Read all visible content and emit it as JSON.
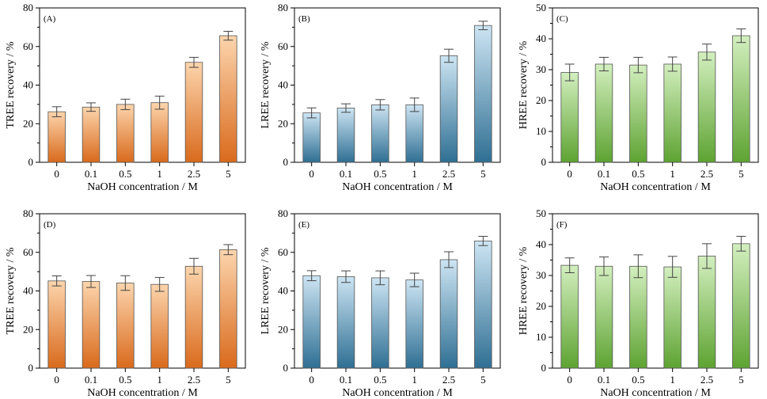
{
  "figure": {
    "categories": [
      "0",
      "0.1",
      "0.5",
      "1",
      "2.5",
      "5"
    ],
    "xlabel": "NaOH concentration / M"
  },
  "chart_data": [
    {
      "type": "bar",
      "panel": "(A)",
      "ylabel": "TREE recovery / %",
      "xlabel": "NaOH concentration / M",
      "categories": [
        "0",
        "0.1",
        "0.5",
        "1",
        "2.5",
        "5"
      ],
      "values": [
        26.2,
        28.6,
        30.0,
        30.9,
        51.8,
        65.6
      ],
      "errors": [
        2.6,
        2.2,
        2.7,
        3.4,
        2.6,
        2.3
      ],
      "ylim": [
        0,
        80
      ],
      "yticks": [
        0,
        20,
        40,
        60,
        80
      ],
      "color_top": "#fcd5ad",
      "color_bottom": "#d96a1c"
    },
    {
      "type": "bar",
      "panel": "(B)",
      "ylabel": "LREE recovery / %",
      "xlabel": "NaOH concentration / M",
      "categories": [
        "0",
        "0.1",
        "0.5",
        "1",
        "2.5",
        "5"
      ],
      "values": [
        25.6,
        28.1,
        29.8,
        29.8,
        55.2,
        70.9
      ],
      "errors": [
        2.6,
        2.2,
        2.7,
        3.5,
        3.4,
        2.2
      ],
      "ylim": [
        0,
        80
      ],
      "yticks": [
        0,
        20,
        40,
        60,
        80
      ],
      "color_top": "#cde5f3",
      "color_bottom": "#2f6f93"
    },
    {
      "type": "bar",
      "panel": "(C)",
      "ylabel": "HREE recovery / %",
      "xlabel": "NaOH concentration / M",
      "categories": [
        "0",
        "0.1",
        "0.5",
        "1",
        "2.5",
        "5"
      ],
      "values": [
        29.1,
        31.8,
        31.5,
        31.8,
        35.7,
        41.0
      ],
      "errors": [
        2.7,
        2.2,
        2.5,
        2.3,
        2.6,
        2.2
      ],
      "ylim": [
        0,
        50
      ],
      "yticks": [
        0,
        10,
        20,
        30,
        40,
        50
      ],
      "color_top": "#d3efbf",
      "color_bottom": "#5ea332"
    },
    {
      "type": "bar",
      "panel": "(D)",
      "ylabel": "TREE recovery / %",
      "xlabel": "NaOH concentration / M",
      "categories": [
        "0",
        "0.1",
        "0.5",
        "1",
        "2.5",
        "5"
      ],
      "values": [
        45.2,
        44.9,
        44.1,
        43.4,
        52.8,
        61.4
      ],
      "errors": [
        2.6,
        3.1,
        3.8,
        3.6,
        4.1,
        2.6
      ],
      "ylim": [
        0,
        80
      ],
      "yticks": [
        0,
        20,
        40,
        60,
        80
      ],
      "color_top": "#fcd5ad",
      "color_bottom": "#d96a1c"
    },
    {
      "type": "bar",
      "panel": "(E)",
      "ylabel": "LREE recovery / %",
      "xlabel": "NaOH concentration / M",
      "categories": [
        "0",
        "0.1",
        "0.5",
        "1",
        "2.5",
        "5"
      ],
      "values": [
        47.9,
        47.4,
        46.8,
        45.7,
        56.2,
        65.9
      ],
      "errors": [
        2.6,
        3.0,
        3.6,
        3.5,
        4.1,
        2.4
      ],
      "ylim": [
        0,
        80
      ],
      "yticks": [
        0,
        20,
        40,
        60,
        80
      ],
      "color_top": "#cde5f3",
      "color_bottom": "#2f6f93"
    },
    {
      "type": "bar",
      "panel": "(F)",
      "ylabel": "HREE recovery / %",
      "xlabel": "NaOH concentration / M",
      "categories": [
        "0",
        "0.1",
        "0.5",
        "1",
        "2.5",
        "5"
      ],
      "values": [
        33.3,
        33.0,
        33.0,
        32.8,
        36.3,
        40.3
      ],
      "errors": [
        2.4,
        3.0,
        3.7,
        3.4,
        4.0,
        2.4
      ],
      "ylim": [
        0,
        50
      ],
      "yticks": [
        0,
        10,
        20,
        30,
        40,
        50
      ],
      "color_top": "#d3efbf",
      "color_bottom": "#5ea332"
    }
  ]
}
